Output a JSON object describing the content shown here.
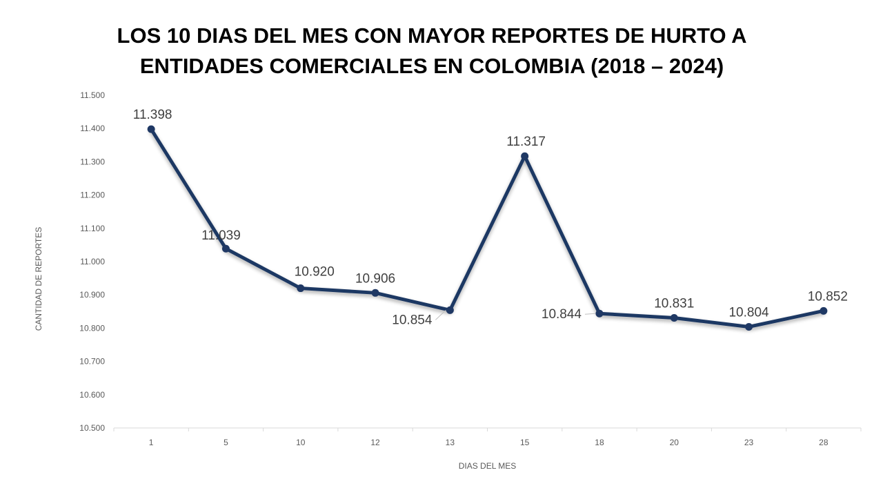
{
  "chart_data": {
    "type": "line",
    "title_lines": [
      "LOS 10 DIAS DEL MES CON MAYOR REPORTES DE HURTO A",
      "ENTIDADES COMERCIALES EN COLOMBIA (2018 – 2024)"
    ],
    "xlabel": "DIAS DEL MES",
    "ylabel": "CANTIDAD DE REPORTES",
    "categories": [
      "1",
      "5",
      "10",
      "12",
      "13",
      "15",
      "18",
      "20",
      "23",
      "28"
    ],
    "values": [
      11398,
      11039,
      10920,
      10906,
      10854,
      11317,
      10844,
      10831,
      10804,
      10852
    ],
    "data_labels": [
      "11.398",
      "11.039",
      "10.920",
      "10.906",
      "10.854",
      "11.317",
      "10.844",
      "10.831",
      "10.804",
      "10.852"
    ],
    "ylim": [
      10500,
      11500
    ],
    "y_ticks": [
      10500,
      10600,
      10700,
      10800,
      10900,
      11000,
      11100,
      11200,
      11300,
      11400,
      11500
    ],
    "y_tick_labels": [
      "10.500",
      "10.600",
      "10.700",
      "10.800",
      "10.900",
      "11.000",
      "11.100",
      "11.200",
      "11.300",
      "11.400",
      "11.500"
    ],
    "grid": false,
    "line_color": "#1f3864",
    "axis_color": "#d9d9d9"
  }
}
